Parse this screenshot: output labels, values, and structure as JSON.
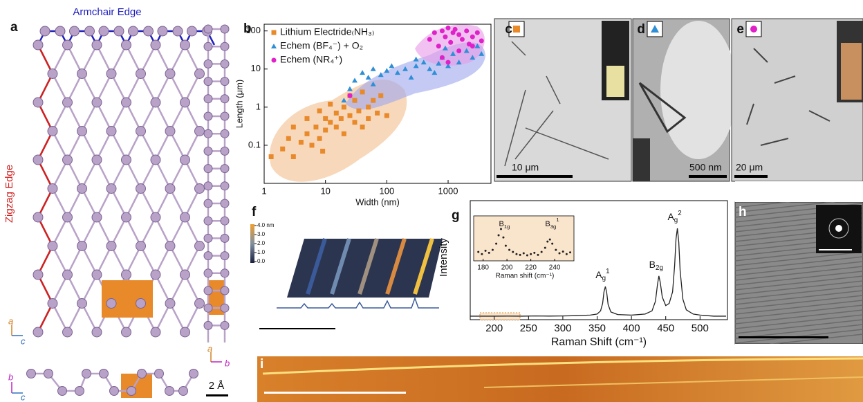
{
  "panels": {
    "a": {
      "label": "a",
      "armchair": "Armchair Edge",
      "zigzag": "Zigzag Edge",
      "axes_main": [
        "a",
        "c"
      ],
      "axes_bottom": [
        "b",
        "c"
      ],
      "axes_side": [
        "a",
        "b"
      ],
      "scale": "2 Å"
    },
    "c": {
      "label": "c",
      "scale": "10 μm"
    },
    "d": {
      "label": "d",
      "scale": "500 nm"
    },
    "e": {
      "label": "e",
      "scale": "20 μm"
    },
    "f": {
      "label": "f",
      "colorbar": [
        {
          "value": 4.0,
          "label": "4.0 nm"
        },
        {
          "value": 3.0,
          "label": "3.0"
        },
        {
          "value": 2.0,
          "label": "2.0"
        },
        {
          "value": 1.0,
          "label": "1.0"
        },
        {
          "value": 0.0,
          "label": "0.0"
        }
      ]
    },
    "h": {
      "label": "h"
    },
    "i": {
      "label": "i"
    }
  },
  "chart_data": [
    {
      "type": "scatter",
      "label": "b",
      "xlabel": "Width (nm)",
      "ylabel": "Length (μm)",
      "xscale": "log",
      "yscale": "log",
      "xlim": [
        1,
        5000
      ],
      "ylim": [
        0.01,
        150
      ],
      "xticks": [
        1,
        10,
        100,
        1000
      ],
      "yticks": [
        0.1,
        1,
        10,
        100
      ],
      "series": [
        {
          "name": "Lithium Electride₍NH₃₎",
          "color": "#e8892a",
          "marker": "square",
          "x": [
            1.3,
            2,
            2.5,
            3,
            4,
            5,
            5,
            6,
            7,
            8,
            8,
            10,
            10,
            12,
            12,
            15,
            15,
            18,
            20,
            20,
            25,
            25,
            30,
            30,
            35,
            40,
            40,
            50,
            50,
            60,
            70,
            80,
            100,
            3,
            9
          ],
          "values": [
            0.05,
            0.08,
            0.15,
            0.3,
            0.12,
            0.2,
            0.5,
            0.1,
            0.3,
            0.15,
            0.8,
            0.25,
            0.5,
            0.4,
            1.2,
            0.3,
            0.7,
            0.5,
            1.0,
            0.2,
            0.6,
            2.0,
            0.4,
            1.5,
            0.8,
            0.3,
            2.5,
            1.0,
            0.5,
            1.5,
            0.7,
            2.0,
            0.6,
            0.05,
            0.07
          ]
        },
        {
          "name": "Echem (BF₄⁻) + O₂",
          "color": "#2f8fd6",
          "marker": "triangle",
          "x": [
            20,
            25,
            30,
            40,
            50,
            60,
            80,
            100,
            120,
            150,
            200,
            250,
            300,
            400,
            500,
            600,
            700,
            800,
            1000,
            1200,
            1500,
            2000,
            2500,
            3000,
            3500,
            60,
            300,
            900
          ],
          "values": [
            1.5,
            3,
            5,
            8,
            6,
            10,
            7,
            9,
            12,
            8,
            10,
            6,
            12,
            15,
            10,
            8,
            14,
            20,
            12,
            25,
            15,
            30,
            20,
            40,
            25,
            4,
            18,
            35
          ]
        },
        {
          "name": "Echem (NR₄⁺)",
          "color": "#e020c8",
          "marker": "circle",
          "x": [
            500,
            600,
            700,
            800,
            900,
            1000,
            1100,
            1200,
            1300,
            1500,
            1700,
            2000,
            2200,
            2500,
            3000,
            3500,
            800,
            1500,
            2500,
            1000,
            25
          ],
          "values": [
            60,
            90,
            40,
            100,
            70,
            120,
            50,
            90,
            110,
            80,
            60,
            100,
            45,
            70,
            90,
            55,
            20,
            30,
            40,
            15,
            2
          ]
        }
      ]
    },
    {
      "type": "line",
      "label": "g",
      "xlabel": "Raman Shift (cm⁻¹)",
      "ylabel": "Intensity",
      "color": "#222222",
      "xlim": [
        165,
        540
      ],
      "xticks": [
        200,
        250,
        300,
        350,
        400,
        450,
        500
      ],
      "x": [
        165,
        180,
        200,
        220,
        240,
        260,
        280,
        300,
        320,
        340,
        350,
        355,
        358,
        360,
        362,
        364,
        366,
        370,
        380,
        400,
        420,
        430,
        435,
        438,
        440,
        442,
        445,
        450,
        455,
        460,
        463,
        465,
        467,
        469,
        471,
        475,
        480,
        490,
        500,
        520,
        538
      ],
      "values": [
        0.02,
        0.02,
        0.02,
        0.021,
        0.02,
        0.022,
        0.021,
        0.022,
        0.025,
        0.03,
        0.04,
        0.07,
        0.14,
        0.25,
        0.3,
        0.24,
        0.13,
        0.06,
        0.035,
        0.03,
        0.04,
        0.07,
        0.16,
        0.32,
        0.4,
        0.34,
        0.2,
        0.12,
        0.14,
        0.25,
        0.5,
        0.75,
        0.85,
        0.72,
        0.45,
        0.18,
        0.08,
        0.04,
        0.03,
        0.02,
        0.02
      ],
      "annotations": [
        {
          "x": 362,
          "base": "A",
          "sub": "g",
          "sup": "1"
        },
        {
          "x": 440,
          "base": "B",
          "sub": "2g"
        },
        {
          "x": 467,
          "base": "A",
          "sub": "g",
          "sup": "2"
        }
      ]
    },
    {
      "type": "scatter",
      "xlabel": "Raman shift (cm⁻¹)",
      "color": "#222222",
      "xlim": [
        175,
        255
      ],
      "xticks": [
        180,
        200,
        220,
        240
      ],
      "x": [
        176,
        179,
        182,
        185,
        188,
        191,
        193,
        195,
        197,
        199,
        202,
        205,
        208,
        211,
        214,
        217,
        220,
        223,
        226,
        229,
        232,
        234,
        236,
        238,
        241,
        244,
        247,
        250,
        253
      ],
      "values": [
        0.35,
        0.3,
        0.38,
        0.33,
        0.4,
        0.55,
        0.75,
        0.9,
        0.7,
        0.5,
        0.4,
        0.35,
        0.3,
        0.28,
        0.32,
        0.27,
        0.3,
        0.33,
        0.28,
        0.35,
        0.45,
        0.6,
        0.65,
        0.55,
        0.4,
        0.32,
        0.36,
        0.3,
        0.34
      ],
      "annotations": [
        {
          "x": 195,
          "base": "B",
          "sub": "1g"
        },
        {
          "x": 235,
          "base": "B",
          "sub": "3g",
          "sup": "1"
        }
      ]
    }
  ]
}
